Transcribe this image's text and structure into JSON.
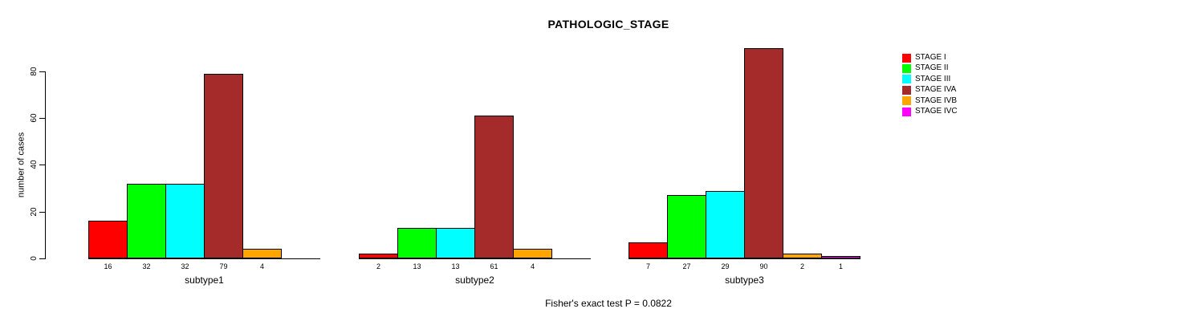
{
  "chart_data": {
    "type": "bar",
    "title": "PATHOLOGIC_STAGE",
    "ylabel": "number of cases",
    "ylim": [
      0,
      80
    ],
    "yticks": [
      0,
      20,
      40,
      60,
      80
    ],
    "grid": false,
    "legend_position": "right",
    "categories": [
      "subtype1",
      "subtype2",
      "subtype3"
    ],
    "series": [
      {
        "name": "STAGE I",
        "color": "#FF0000",
        "values": [
          16,
          2,
          7
        ]
      },
      {
        "name": "STAGE II",
        "color": "#00FF00",
        "values": [
          32,
          13,
          27
        ]
      },
      {
        "name": "STAGE III",
        "color": "#00FFFF",
        "values": [
          32,
          13,
          29
        ]
      },
      {
        "name": "STAGE IVA",
        "color": "#A52A2A",
        "values": [
          79,
          61,
          90
        ]
      },
      {
        "name": "STAGE IVB",
        "color": "#FFA500",
        "values": [
          4,
          4,
          2
        ]
      },
      {
        "name": "STAGE IVC",
        "color": "#FF00FF",
        "values": [
          null,
          null,
          1
        ]
      }
    ],
    "annotation": "Fisher's exact test P = 0.0822"
  }
}
